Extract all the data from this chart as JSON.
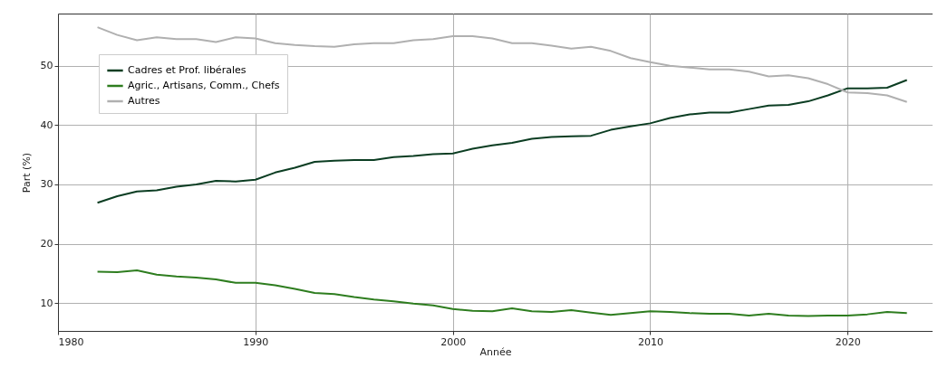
{
  "chart_data": {
    "type": "line",
    "xlabel": "Année",
    "ylabel": "Part (%)",
    "xlim": [
      1980,
      2024.3
    ],
    "ylim": [
      5.3,
      58.8
    ],
    "xticks": [
      1980,
      1990,
      2000,
      2010,
      2020
    ],
    "yticks": [
      10,
      20,
      30,
      40,
      50
    ],
    "grid": true,
    "legend": "top left",
    "line_style": "solid",
    "x": [
      1982,
      1983,
      1984,
      1985,
      1986,
      1987,
      1988,
      1989,
      1990,
      1991,
      1992,
      1993,
      1994,
      1995,
      1996,
      1997,
      1998,
      1999,
      2000,
      2001,
      2002,
      2003,
      2004,
      2005,
      2006,
      2007,
      2008,
      2009,
      2010,
      2011,
      2012,
      2013,
      2014,
      2015,
      2016,
      2017,
      2018,
      2019,
      2020,
      2021,
      2022,
      2023
    ],
    "series": [
      {
        "name": "Cadres et Prof. libérales",
        "color": "#0b3d22",
        "values": [
          26.9,
          28.0,
          28.8,
          29.0,
          29.6,
          30.0,
          30.6,
          30.5,
          30.8,
          32.0,
          32.8,
          33.8,
          34.0,
          34.1,
          34.1,
          34.6,
          34.8,
          35.1,
          35.2,
          36.0,
          36.6,
          37.0,
          37.7,
          38.0,
          38.1,
          38.2,
          39.2,
          39.8,
          40.3,
          41.2,
          41.8,
          42.1,
          42.1,
          42.7,
          43.3,
          43.4,
          44.0,
          45.0,
          46.2,
          46.2,
          46.3,
          47.6
        ]
      },
      {
        "name": "Agric., Artisans, Comm., Chefs",
        "color": "#2e7d1f",
        "values": [
          15.3,
          15.2,
          15.5,
          14.8,
          14.5,
          14.3,
          14.0,
          13.4,
          13.4,
          13.0,
          12.4,
          11.7,
          11.5,
          11.0,
          10.6,
          10.3,
          9.9,
          9.6,
          9.0,
          8.7,
          8.6,
          9.1,
          8.6,
          8.5,
          8.8,
          8.4,
          8.0,
          8.3,
          8.6,
          8.5,
          8.3,
          8.2,
          8.2,
          7.9,
          8.2,
          7.9,
          7.8,
          7.9,
          7.9,
          8.1,
          8.5,
          8.3
        ]
      },
      {
        "name": "Autres",
        "color": "#b0b0b0",
        "values": [
          56.5,
          55.2,
          54.3,
          54.8,
          54.5,
          54.5,
          54.0,
          54.8,
          54.6,
          53.8,
          53.5,
          53.3,
          53.2,
          53.6,
          53.8,
          53.8,
          54.3,
          54.5,
          55.0,
          55.0,
          54.6,
          53.8,
          53.8,
          53.4,
          52.9,
          53.2,
          52.5,
          51.3,
          50.6,
          50.0,
          49.7,
          49.4,
          49.4,
          49.0,
          48.2,
          48.4,
          47.9,
          46.9,
          45.5,
          45.4,
          45.0,
          43.9
        ]
      }
    ]
  }
}
